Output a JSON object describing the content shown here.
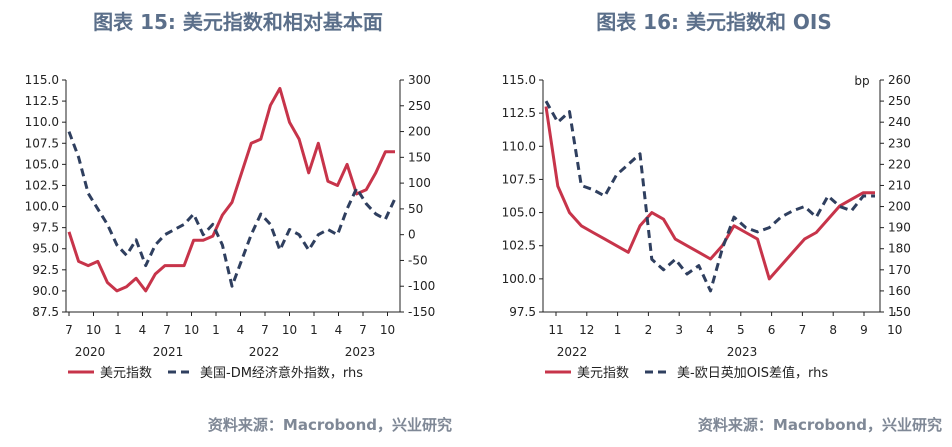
{
  "colors": {
    "red": "#c7344a",
    "navy": "#2f3f5f",
    "title": "#5b6f8a",
    "source": "#7f8896"
  },
  "chart_data": [
    {
      "type": "line",
      "title": "图表 15: 美元指数和相对基本面",
      "source": "资料来源：Macrobond，兴业研究",
      "x_ticks": [
        "7",
        "10",
        "1",
        "4",
        "7",
        "10",
        "1",
        "4",
        "7",
        "10",
        "1",
        "4",
        "7",
        "10"
      ],
      "year_labels": [
        "2020",
        "2021",
        "2022",
        "2023"
      ],
      "left_axis": {
        "ylim": [
          87.5,
          115.0
        ],
        "ticks": [
          "115.0",
          "112.5",
          "110.0",
          "107.5",
          "105.0",
          "102.5",
          "100.0",
          "97.5",
          "95.0",
          "92.5",
          "90.0",
          "87.5"
        ]
      },
      "right_axis": {
        "ylim": [
          -150,
          300
        ],
        "ticks": [
          "300",
          "250",
          "200",
          "150",
          "100",
          "50",
          "0",
          "-50",
          "-100",
          "-150"
        ],
        "label": "rhs"
      },
      "series": [
        {
          "name": "美元指数",
          "axis": "left",
          "style": "solid",
          "values": [
            97,
            93.5,
            93,
            93.5,
            91,
            90,
            90.5,
            91.5,
            90,
            92,
            93,
            93,
            93,
            96,
            96,
            96.5,
            99,
            100.5,
            104,
            107.5,
            108,
            112,
            114,
            110,
            108,
            104,
            107.5,
            103,
            102.5,
            105,
            101.5,
            102,
            104,
            106.5,
            106.5
          ]
        },
        {
          "name": "美国-DM经济意外指数，rhs",
          "axis": "right",
          "style": "dashed",
          "values": [
            200,
            150,
            80,
            50,
            20,
            -20,
            -40,
            -10,
            -60,
            -20,
            0,
            10,
            20,
            40,
            0,
            20,
            -20,
            -100,
            -50,
            0,
            40,
            20,
            -30,
            10,
            0,
            -30,
            0,
            10,
            0,
            50,
            90,
            60,
            40,
            30,
            70
          ]
        }
      ]
    },
    {
      "type": "line",
      "title": "图表 16: 美元指数和 OIS",
      "source": "资料来源：Macrobond，兴业研究",
      "x_ticks": [
        "11",
        "12",
        "1",
        "2",
        "3",
        "4",
        "5",
        "6",
        "7",
        "8",
        "9",
        "10"
      ],
      "year_labels": [
        "2022",
        "2023"
      ],
      "left_axis": {
        "ylim": [
          97.5,
          115.0
        ],
        "ticks": [
          "115.0",
          "112.5",
          "110.0",
          "107.5",
          "105.0",
          "102.5",
          "100.0",
          "97.5"
        ]
      },
      "right_axis": {
        "ylim": [
          150,
          260
        ],
        "ticks": [
          "260",
          "250",
          "240",
          "230",
          "220",
          "210",
          "200",
          "190",
          "180",
          "170",
          "160",
          "150"
        ],
        "label": "rhs",
        "unit": "bp"
      },
      "series": [
        {
          "name": "美元指数",
          "axis": "left",
          "style": "solid",
          "values": [
            113,
            107,
            105,
            104,
            103.5,
            103,
            102.5,
            102,
            104,
            105,
            104.5,
            103,
            102.5,
            102,
            101.5,
            102.5,
            104,
            103.5,
            103,
            100,
            101,
            102,
            103,
            103.5,
            104.5,
            105.5,
            106,
            106.5,
            106.5
          ]
        },
        {
          "name": "美-欧日英加OIS差值，rhs",
          "axis": "right",
          "style": "dashed",
          "values": [
            250,
            240,
            245,
            210,
            208,
            205,
            215,
            220,
            225,
            175,
            170,
            175,
            168,
            172,
            160,
            180,
            195,
            190,
            188,
            190,
            195,
            198,
            200,
            195,
            205,
            200,
            198,
            205,
            205
          ]
        }
      ]
    }
  ]
}
